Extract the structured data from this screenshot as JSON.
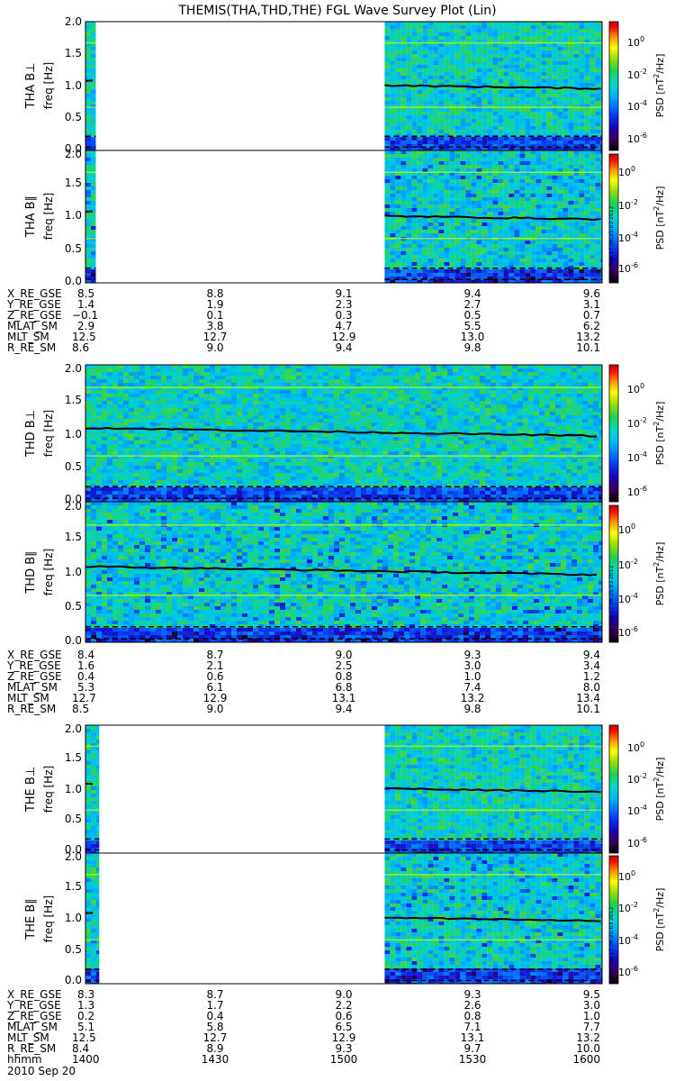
{
  "title": "THEMIS(THA,THD,THE) FGL Wave Survey Plot (Lin)",
  "colorbar": {
    "label_prefix": "PSD [nT",
    "label_sup": "2",
    "label_suffix": "/Hz]",
    "tick_labels": [
      {
        "base": "10",
        "exp": "0"
      },
      {
        "base": "10",
        "exp": "-2"
      },
      {
        "base": "10",
        "exp": "-4"
      },
      {
        "base": "10",
        "exp": "-6"
      }
    ],
    "log_range": [
      -7,
      1
    ]
  },
  "timestamp_stamp": "Mon Sep 17 06:25:03 2012",
  "axis": {
    "freq_label": "freq [Hz]",
    "y_ticks": [
      "0.0",
      "0.5",
      "1.0",
      "1.5",
      "2.0"
    ]
  },
  "colors": {
    "background": "#ffffff",
    "noise_line": "#000000",
    "harmonic_line": "#ccff00"
  },
  "chart_data": [
    {
      "type": "heatmap",
      "probe": "THA",
      "panels": [
        {
          "label": "THA B⊥",
          "ylim": [
            0,
            2
          ]
        },
        {
          "label": "THA B∥",
          "ylim": [
            0,
            2
          ]
        }
      ],
      "data_coverage": [
        [
          1400,
          1402.4
        ],
        [
          1509.5,
          1600
        ]
      ],
      "ephemeris_ticks_hhmm": [
        1400,
        1430,
        1500,
        1530,
        1600
      ],
      "ephemeris": [
        {
          "label": "X_RE_GSE",
          "values": [
            "8.5",
            "8.8",
            "9.1",
            "9.4",
            "9.6"
          ]
        },
        {
          "label": "Y_RE_GSE",
          "values": [
            "1.4",
            "1.9",
            "2.3",
            "2.7",
            "3.1"
          ]
        },
        {
          "label": "Z_RE_GSE",
          "values": [
            "−0.1",
            "0.1",
            "0.3",
            "0.5",
            "0.7"
          ]
        },
        {
          "label": "MLAT_SM",
          "values": [
            "2.9",
            "3.8",
            "4.7",
            "5.5",
            "6.2"
          ]
        },
        {
          "label": "MLT_SM",
          "values": [
            "12.5",
            "12.7",
            "12.9",
            "13.0",
            "13.2"
          ]
        },
        {
          "label": "R_RE_SM",
          "values": [
            "8.6",
            "9.0",
            "9.4",
            "9.8",
            "10.1"
          ]
        }
      ]
    },
    {
      "type": "heatmap",
      "probe": "THD",
      "panels": [
        {
          "label": "THD B⊥",
          "ylim": [
            0,
            2
          ]
        },
        {
          "label": "THD B∥",
          "ylim": [
            0,
            2
          ]
        }
      ],
      "data_coverage": [
        [
          1400,
          1600
        ]
      ],
      "ephemeris_ticks_hhmm": [
        1400,
        1430,
        1500,
        1530,
        1600
      ],
      "ephemeris": [
        {
          "label": "X_RE_GSE",
          "values": [
            "8.4",
            "8.7",
            "9.0",
            "9.3",
            "9.4"
          ]
        },
        {
          "label": "Y_RE_GSE",
          "values": [
            "1.6",
            "2.1",
            "2.5",
            "3.0",
            "3.4"
          ]
        },
        {
          "label": "Z_RE_GSE",
          "values": [
            "0.4",
            "0.6",
            "0.8",
            "1.0",
            "1.2"
          ]
        },
        {
          "label": "MLAT_SM",
          "values": [
            "5.3",
            "6.1",
            "6.8",
            "7.4",
            "8.0"
          ]
        },
        {
          "label": "MLT_SM",
          "values": [
            "12.7",
            "12.9",
            "13.1",
            "13.2",
            "13.4"
          ]
        },
        {
          "label": "R_RE_SM",
          "values": [
            "8.5",
            "9.0",
            "9.4",
            "9.8",
            "10.1"
          ]
        }
      ]
    },
    {
      "type": "heatmap",
      "probe": "THE",
      "panels": [
        {
          "label": "THE B⊥",
          "ylim": [
            0,
            2
          ]
        },
        {
          "label": "THE B∥",
          "ylim": [
            0,
            2
          ]
        }
      ],
      "data_coverage": [
        [
          1400,
          1403.2
        ],
        [
          1509.5,
          1600
        ]
      ],
      "ephemeris_ticks_hhmm": [
        1400,
        1430,
        1500,
        1530,
        1600
      ],
      "ephemeris": [
        {
          "label": "X_RE_GSE",
          "values": [
            "8.3",
            "8.7",
            "9.0",
            "9.3",
            "9.5"
          ]
        },
        {
          "label": "Y_RE_GSE",
          "values": [
            "1.3",
            "1.7",
            "2.2",
            "2.6",
            "3.0"
          ]
        },
        {
          "label": "Z_RE_GSE",
          "values": [
            "0.2",
            "0.4",
            "0.6",
            "0.8",
            "1.0"
          ]
        },
        {
          "label": "MLAT_SM",
          "values": [
            "5.1",
            "5.8",
            "6.5",
            "7.1",
            "7.7"
          ]
        },
        {
          "label": "MLT_SM",
          "values": [
            "12.5",
            "12.7",
            "12.9",
            "13.1",
            "13.2"
          ]
        },
        {
          "label": "R_RE_SM",
          "values": [
            "8.4",
            "8.9",
            "9.3",
            "9.7",
            "10.0"
          ]
        },
        {
          "label": "hhmm",
          "values": [
            "1400",
            "1430",
            "1500",
            "1530",
            "1600"
          ]
        }
      ],
      "date_label": "2010 Sep 20"
    }
  ]
}
